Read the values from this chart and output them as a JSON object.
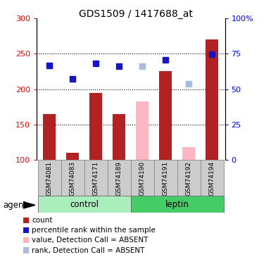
{
  "title": "GDS1509 / 1417688_at",
  "samples": [
    "GSM74081",
    "GSM74083",
    "GSM74171",
    "GSM74189",
    "GSM74190",
    "GSM74191",
    "GSM74192",
    "GSM74194"
  ],
  "bar_values": [
    165,
    110,
    195,
    165,
    null,
    225,
    null,
    270
  ],
  "bar_values_absent": [
    null,
    null,
    null,
    null,
    183,
    null,
    118,
    null
  ],
  "rank_values": [
    233,
    215,
    236,
    232,
    null,
    241,
    null,
    249
  ],
  "rank_values_absent": [
    null,
    null,
    null,
    null,
    232,
    null,
    208,
    null
  ],
  "bar_color": "#B22222",
  "bar_absent_color": "#FFB6C1",
  "rank_color": "#1414CC",
  "rank_absent_color": "#AABBDD",
  "ylim_left": [
    100,
    300
  ],
  "ylim_right": [
    0,
    100
  ],
  "yticks_left": [
    100,
    150,
    200,
    250,
    300
  ],
  "yticks_right": [
    0,
    25,
    50,
    75,
    100
  ],
  "ytick_labels_right": [
    "0",
    "25",
    "50",
    "75",
    "100%"
  ],
  "gridlines": [
    150,
    200,
    250
  ],
  "groups": [
    {
      "label": "control",
      "indices": [
        0,
        1,
        2,
        3
      ],
      "color": "#AAEEBB"
    },
    {
      "label": "leptin",
      "indices": [
        4,
        5,
        6,
        7
      ],
      "color": "#44CC66"
    }
  ],
  "agent_label": "agent",
  "bar_width": 0.55,
  "marker_size": 6,
  "legend_items": [
    {
      "color": "#B22222",
      "label": "count"
    },
    {
      "color": "#1414CC",
      "label": "percentile rank within the sample"
    },
    {
      "color": "#FFB6C1",
      "label": "value, Detection Call = ABSENT"
    },
    {
      "color": "#AABBDD",
      "label": "rank, Detection Call = ABSENT"
    }
  ]
}
